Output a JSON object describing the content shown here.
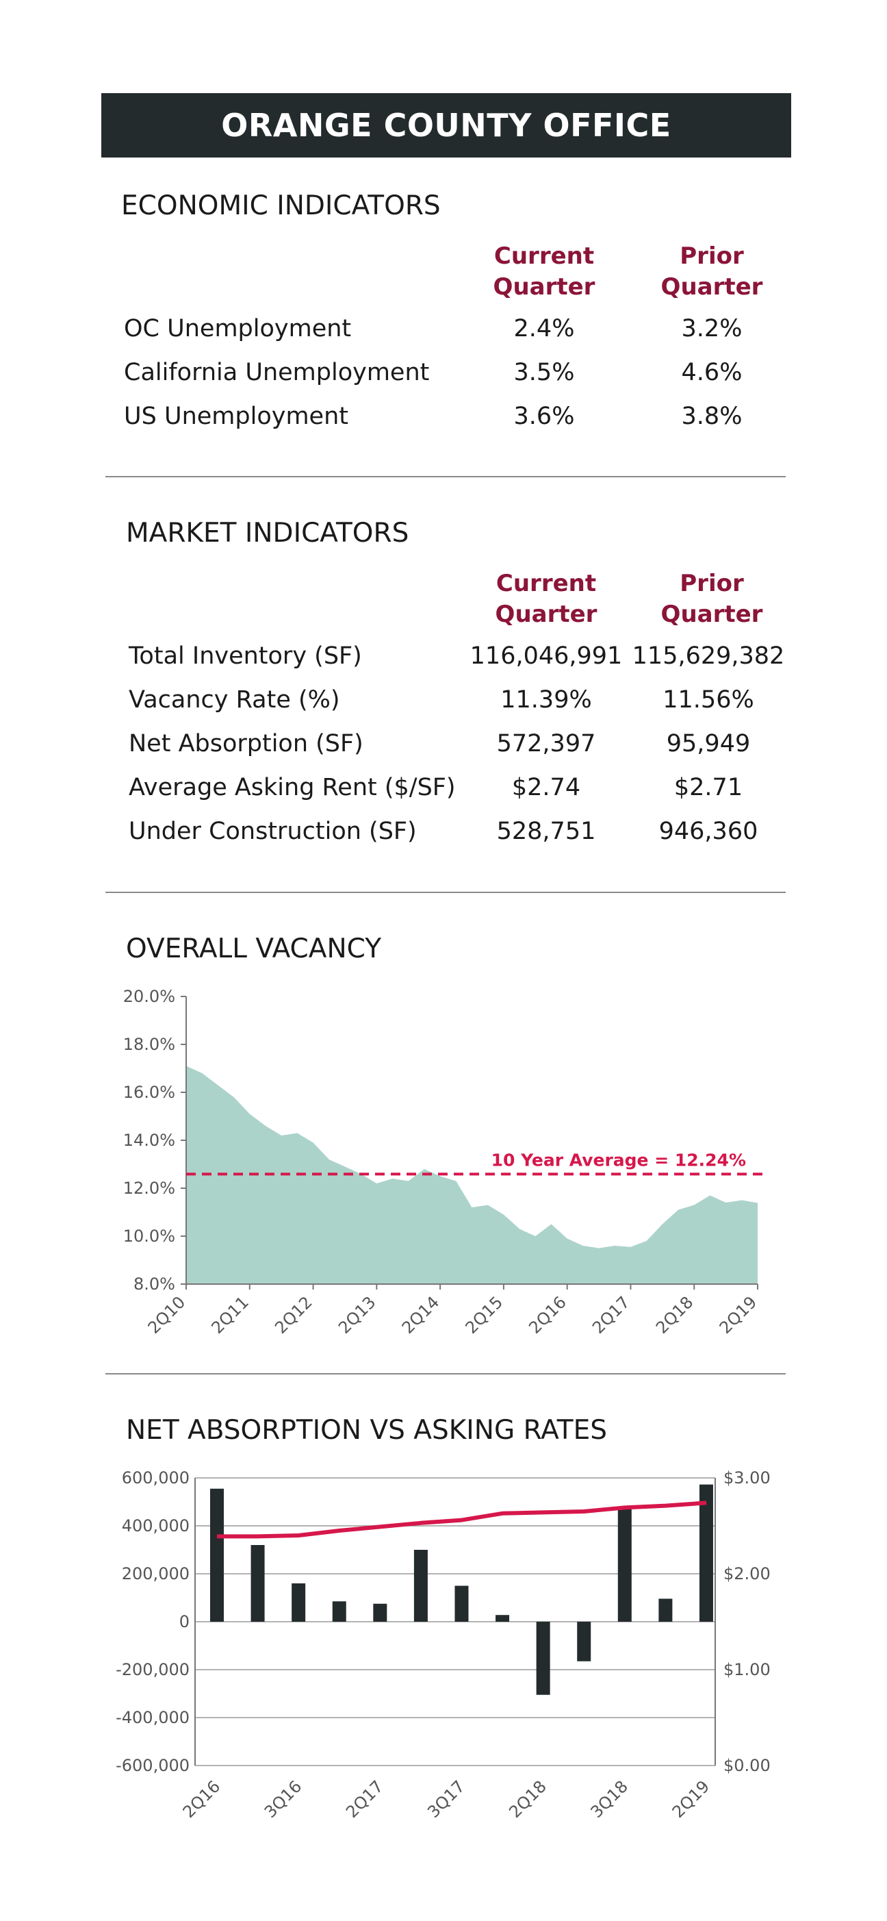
{
  "header": {
    "title": "ORANGE COUNTY OFFICE"
  },
  "economic": {
    "title": "ECONOMIC INDICATORS",
    "col1": "Current\nQuarter",
    "col2": "Prior\nQuarter",
    "rows": [
      {
        "label": "OC Unemployment",
        "current": "2.4%",
        "prior": "3.2%"
      },
      {
        "label": "California Unemployment",
        "current": "3.5%",
        "prior": "4.6%"
      },
      {
        "label": "US Unemployment",
        "current": "3.6%",
        "prior": "3.8%"
      }
    ]
  },
  "market": {
    "title": "MARKET INDICATORS",
    "col1": "Current\nQuarter",
    "col2": "Prior\nQuarter",
    "rows": [
      {
        "label": "Total Inventory (SF)",
        "current": "116,046,991",
        "prior": "115,629,382"
      },
      {
        "label": "Vacancy Rate (%)",
        "current": "11.39%",
        "prior": "11.56%"
      },
      {
        "label": "Net Absorption (SF)",
        "current": "572,397",
        "prior": "95,949"
      },
      {
        "label": "Average Asking Rent ($/SF)",
        "current": "$2.74",
        "prior": "$2.71"
      },
      {
        "label": "Under Construction (SF)",
        "current": "528,751",
        "prior": "946,360"
      }
    ]
  },
  "colors": {
    "accent": "#8b1538",
    "banner": "#232b2d",
    "area": "#acd3ca",
    "avg_line": "#d6174b",
    "bar": "#232b2d",
    "rent_line": "#d6174b"
  },
  "chart_data": [
    {
      "type": "area",
      "title": "OVERALL VACANCY",
      "x_tick_labels": [
        "2Q10",
        "2Q11",
        "2Q12",
        "2Q13",
        "2Q14",
        "2Q15",
        "2Q16",
        "2Q17",
        "2Q18",
        "2Q19"
      ],
      "y_tick_labels": [
        "8.0%",
        "10.0%",
        "12.0%",
        "14.0%",
        "16.0%",
        "18.0%",
        "20.0%"
      ],
      "ylim": [
        8,
        20
      ],
      "quarters": [
        "2Q10",
        "3Q10",
        "4Q10",
        "1Q11",
        "2Q11",
        "3Q11",
        "4Q11",
        "1Q12",
        "2Q12",
        "3Q12",
        "4Q12",
        "1Q13",
        "2Q13",
        "3Q13",
        "4Q13",
        "1Q14",
        "2Q14",
        "3Q14",
        "4Q14",
        "1Q15",
        "2Q15",
        "3Q15",
        "4Q15",
        "1Q16",
        "2Q16",
        "3Q16",
        "4Q16",
        "1Q17",
        "2Q17",
        "3Q17",
        "4Q17",
        "1Q18",
        "2Q18",
        "3Q18",
        "4Q18",
        "1Q19",
        "2Q19"
      ],
      "values": [
        17.1,
        16.8,
        16.3,
        15.8,
        15.1,
        14.6,
        14.2,
        14.3,
        13.9,
        13.2,
        12.9,
        12.6,
        12.2,
        12.4,
        12.3,
        12.8,
        12.5,
        12.3,
        11.2,
        11.3,
        10.9,
        10.3,
        10.0,
        10.5,
        9.9,
        9.6,
        9.5,
        9.6,
        9.55,
        9.8,
        10.5,
        11.1,
        11.3,
        11.7,
        11.4,
        11.5,
        11.39
      ],
      "series": [
        {
          "name": "",
          "values": []
        },
        {
          "name": "10 Year Average = 12.24%",
          "value": 12.24
        }
      ],
      "annotation": "10 Year Average = 12.24%",
      "grid": false
    },
    {
      "type": "bar",
      "title": "NET ABSORPTION VS ASKING RATES",
      "x_tick_labels": [
        "2Q16",
        "3Q16",
        "2Q17",
        "3Q17",
        "2Q18",
        "3Q18",
        "2Q19"
      ],
      "categories": [
        "2Q16",
        "3Q16",
        "4Q16",
        "1Q17",
        "2Q17",
        "3Q17",
        "4Q17",
        "1Q18",
        "2Q18",
        "3Q18",
        "4Q18",
        "1Q19",
        "2Q19"
      ],
      "y_tick_labels": [
        "-600,000",
        "-400,000",
        "-200,000",
        "0",
        "200,000",
        "400,000",
        "600,000"
      ],
      "y2_tick_labels": [
        "$0.00",
        "$1.00",
        "$2.00",
        "$3.00"
      ],
      "ylim": [
        -600000,
        600000
      ],
      "y2lim": [
        0,
        3
      ],
      "series": [
        {
          "name": "",
          "type": "bar",
          "values": [
            555000,
            320000,
            160000,
            85000,
            75000,
            300000,
            150000,
            28000,
            -305000,
            -165000,
            480000,
            95949,
            572397
          ]
        },
        {
          "name": "",
          "type": "line",
          "axis": "right",
          "values": [
            2.39,
            2.39,
            2.4,
            2.45,
            2.49,
            2.53,
            2.56,
            2.63,
            2.64,
            2.65,
            2.69,
            2.71,
            2.74
          ]
        }
      ],
      "grid": true
    }
  ]
}
